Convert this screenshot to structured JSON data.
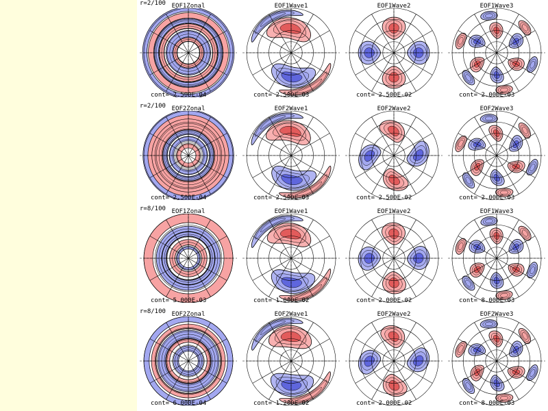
{
  "colors": {
    "sidebar": "#fffedd",
    "positive": "#f7a3a3",
    "negative": "#a3a8f0",
    "line": "#000000"
  },
  "rows": [
    {
      "row_label": "r=2/100",
      "plots": [
        {
          "title": "EOF1Zonal",
          "cont": "cont= 2.500E-04",
          "kind": "zonal",
          "m": 0,
          "rings": [
            {
              "r": 0.98,
              "w": 0.05,
              "s": "neg"
            },
            {
              "r": 0.84,
              "w": 0.06,
              "s": "pos"
            },
            {
              "r": 0.72,
              "w": 0.05,
              "s": "neg"
            },
            {
              "r": 0.6,
              "w": 0.05,
              "s": "pos"
            },
            {
              "r": 0.42,
              "w": 0.08,
              "s": "neg"
            },
            {
              "r": 0.3,
              "w": 0.04,
              "s": "pos"
            }
          ]
        },
        {
          "title": "EOF1Wave1",
          "cont": "cont= 2.500E-03",
          "kind": "wave",
          "m": 1,
          "twist": 1.2
        },
        {
          "title": "EOF1Wave2",
          "cont": "cont= 2.500E-02",
          "kind": "wave",
          "m": 2,
          "twist": 0
        },
        {
          "title": "EOF1Wave3",
          "cont": "cont= 2.000E-03",
          "kind": "wave3",
          "m": 3,
          "twist": 0.3
        }
      ]
    },
    {
      "row_label": "r=2/100",
      "plots": [
        {
          "title": "EOF2Zonal",
          "cont": "cont= 2.500E-04",
          "kind": "zonal",
          "m": 0,
          "rings": [
            {
              "r": 0.96,
              "w": 0.06,
              "s": "neg"
            },
            {
              "r": 0.86,
              "w": 0.05,
              "s": "pos"
            },
            {
              "r": 0.7,
              "w": 0.12,
              "s": "pos"
            },
            {
              "r": 0.52,
              "w": 0.05,
              "s": "neg"
            },
            {
              "r": 0.38,
              "w": 0.05,
              "s": "neg"
            },
            {
              "r": 0.22,
              "w": 0.05,
              "s": "pos"
            }
          ]
        },
        {
          "title": "EOF2Wave1",
          "cont": "cont= 2.500E-03",
          "kind": "wave",
          "m": 1,
          "twist": 1.4
        },
        {
          "title": "EOF2Wave2",
          "cont": "cont= 2.500E-02",
          "kind": "wave",
          "m": 2,
          "twist": 0.8
        },
        {
          "title": "EOF2Wave3",
          "cont": "cont= 2.000E-03",
          "kind": "wave3",
          "m": 3,
          "twist": 0.6
        }
      ]
    },
    {
      "row_label": "r=8/100",
      "plots": [
        {
          "title": "EOF1Zonal",
          "cont": "cont= 5.000E-03",
          "kind": "zonal",
          "m": 0,
          "rings": [
            {
              "r": 0.9,
              "w": 0.1,
              "s": "pos"
            },
            {
              "r": 0.66,
              "w": 0.06,
              "s": "neg"
            },
            {
              "r": 0.54,
              "w": 0.05,
              "s": "neg"
            },
            {
              "r": 0.36,
              "w": 0.06,
              "s": "pos"
            },
            {
              "r": 0.24,
              "w": 0.03,
              "s": "neg"
            }
          ]
        },
        {
          "title": "EOF1Wave1",
          "cont": "cont= 1.000E-02",
          "kind": "wave",
          "m": 1,
          "twist": 1.0
        },
        {
          "title": "EOF1Wave2",
          "cont": "cont= 2.000E-02",
          "kind": "wave",
          "m": 2,
          "twist": 0.15
        },
        {
          "title": "EOF1Wave3",
          "cont": "cont= 8.000E-03",
          "kind": "wave3",
          "m": 3,
          "twist": 0.2
        }
      ]
    },
    {
      "row_label": "r=8/100",
      "plots": [
        {
          "title": "EOF2Zonal",
          "cont": "cont= 6.000E-04",
          "kind": "zonal",
          "m": 0,
          "rings": [
            {
              "r": 0.94,
              "w": 0.06,
              "s": "neg"
            },
            {
              "r": 0.78,
              "w": 0.05,
              "s": "pos"
            },
            {
              "r": 0.6,
              "w": 0.09,
              "s": "neg"
            },
            {
              "r": 0.46,
              "w": 0.04,
              "s": "pos"
            },
            {
              "r": 0.28,
              "w": 0.06,
              "s": "neg"
            }
          ]
        },
        {
          "title": "EOF2Wave1",
          "cont": "cont= 1.200E-02",
          "kind": "wave",
          "m": 1,
          "twist": 0.5
        },
        {
          "title": "EOF2Wave2",
          "cont": "cont= 2.000E-02",
          "kind": "wave",
          "m": 2,
          "twist": 0.5
        },
        {
          "title": "EOF2Wave3",
          "cont": "cont= 8.000E-03",
          "kind": "wave3",
          "m": 3,
          "twist": 0.55
        }
      ]
    }
  ]
}
